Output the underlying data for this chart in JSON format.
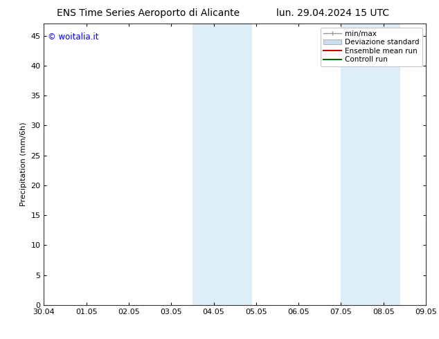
{
  "title_left": "ENS Time Series Aeroporto di Alicante",
  "title_right": "lun. 29.04.2024 15 UTC",
  "ylabel": "Precipitation (mm/6h)",
  "watermark": "© woitalia.it",
  "watermark_color": "#0000dd",
  "xlim_start": 0,
  "xlim_end": 9,
  "ylim": [
    0,
    47
  ],
  "yticks": [
    0,
    5,
    10,
    15,
    20,
    25,
    30,
    35,
    40,
    45
  ],
  "xtick_labels": [
    "30.04",
    "01.05",
    "02.05",
    "03.05",
    "04.05",
    "05.05",
    "06.05",
    "07.05",
    "08.05",
    "09.05"
  ],
  "xtick_positions": [
    0,
    1,
    2,
    3,
    4,
    5,
    6,
    7,
    8,
    9
  ],
  "shaded_regions": [
    [
      3.5,
      4.2
    ],
    [
      4.2,
      4.9
    ],
    [
      7.0,
      7.7
    ],
    [
      7.7,
      8.4
    ]
  ],
  "shade_color": "#ddeef8",
  "background_color": "#ffffff",
  "legend_entries": [
    {
      "label": "min/max",
      "color": "#999999",
      "style": "errorbar"
    },
    {
      "label": "Deviazione standard",
      "color": "#ccddee",
      "style": "rect"
    },
    {
      "label": "Ensemble mean run",
      "color": "#cc0000",
      "style": "line",
      "lw": 1.5
    },
    {
      "label": "Controll run",
      "color": "#006600",
      "style": "line",
      "lw": 1.5
    }
  ],
  "title_fontsize": 10,
  "axis_fontsize": 8,
  "tick_fontsize": 8,
  "legend_fontsize": 7.5
}
